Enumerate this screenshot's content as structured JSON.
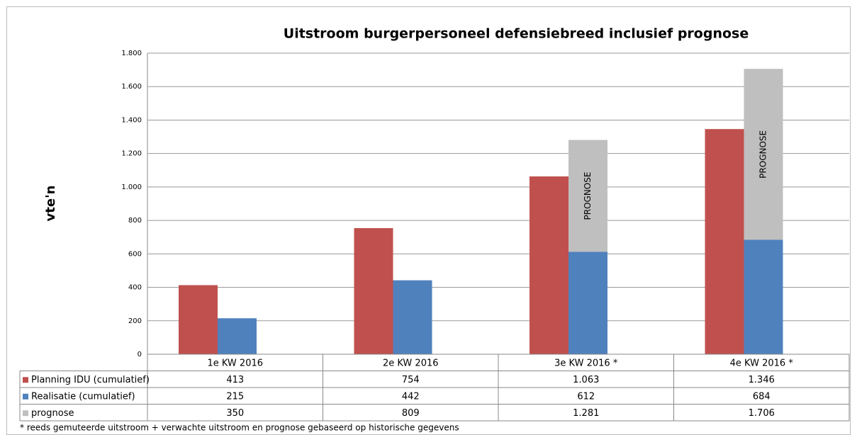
{
  "chart_data": {
    "type": "bar",
    "title": "Uitstroom burgerpersoneel defensiebreed inclusief prognose",
    "y_label": "vte'n",
    "categories": [
      "1e KW 2016",
      "2e KW 2016",
      "3e KW 2016 *",
      "4e KW 2016 *"
    ],
    "series": [
      {
        "name": "Planning IDU (cumulatief)",
        "color": "#c0504d",
        "values": [
          413,
          754,
          1063,
          1346
        ],
        "value_labels": [
          "413",
          "754",
          "1.063",
          "1.346"
        ],
        "column": 0,
        "drawn": [
          true,
          true,
          true,
          true
        ]
      },
      {
        "name": "Realisatie (cumulatief)",
        "color": "#4f81bd",
        "values": [
          215,
          442,
          612,
          684
        ],
        "value_labels": [
          "215",
          "442",
          "612",
          "684"
        ],
        "column": 1,
        "drawn": [
          true,
          true,
          true,
          true
        ]
      },
      {
        "name": "prognose",
        "color": "#bfbfbf",
        "values": [
          350,
          809,
          1281,
          1706
        ],
        "value_labels": [
          "350",
          "809",
          "1.281",
          "1.706"
        ],
        "column": 1,
        "behind": true,
        "drawn": [
          false,
          false,
          true,
          true
        ],
        "bar_label": "PROGNOSE"
      }
    ],
    "ylim": [
      0,
      1800
    ],
    "yticks": [
      0,
      200,
      400,
      600,
      800,
      {
        "value": 1000,
        "label": "1.000"
      },
      {
        "value": 1200,
        "label": "1.200"
      },
      {
        "value": 1400,
        "label": "1.400"
      },
      {
        "value": 1600,
        "label": "1.600"
      },
      {
        "value": 1800,
        "label": "1.800"
      }
    ],
    "grid": true,
    "footnote": "*   reeds gemuteerde uitstroom + verwachte uitstroom en prognose gebaseerd op historische gegevens"
  }
}
